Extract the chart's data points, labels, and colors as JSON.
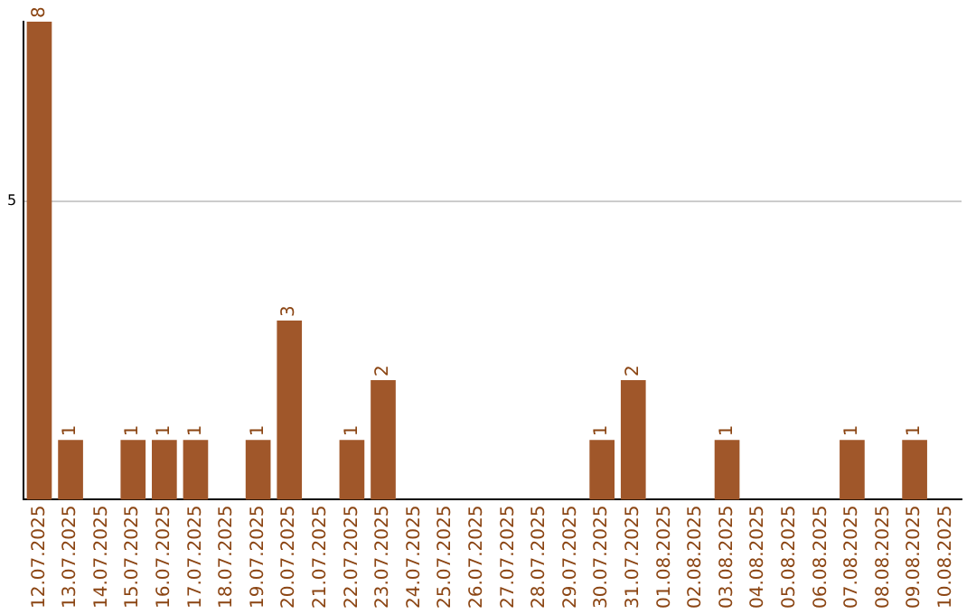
{
  "chart_data": {
    "type": "bar",
    "categories": [
      "12.07.2025",
      "13.07.2025",
      "14.07.2025",
      "15.07.2025",
      "16.07.2025",
      "17.07.2025",
      "18.07.2025",
      "19.07.2025",
      "20.07.2025",
      "21.07.2025",
      "22.07.2025",
      "23.07.2025",
      "24.07.2025",
      "25.07.2025",
      "26.07.2025",
      "27.07.2025",
      "28.07.2025",
      "29.07.2025",
      "30.07.2025",
      "31.07.2025",
      "01.08.2025",
      "02.08.2025",
      "03.08.2025",
      "04.08.2025",
      "05.08.2025",
      "06.08.2025",
      "07.08.2025",
      "08.08.2025",
      "09.08.2025",
      "10.08.2025"
    ],
    "values": [
      8,
      1,
      0,
      1,
      1,
      1,
      0,
      1,
      3,
      0,
      1,
      2,
      0,
      0,
      0,
      0,
      0,
      0,
      1,
      2,
      0,
      0,
      1,
      0,
      0,
      0,
      1,
      0,
      1,
      0
    ],
    "value_labels": [
      "8",
      "1",
      null,
      "1",
      "1",
      "1",
      null,
      "1",
      "3",
      null,
      "1",
      "2",
      null,
      null,
      null,
      null,
      null,
      null,
      "1",
      "2",
      null,
      null,
      "1",
      null,
      null,
      null,
      "1",
      null,
      "1",
      null
    ],
    "color": "#a0572a",
    "ylim": [
      0,
      8
    ],
    "yticks": [
      5
    ],
    "grid": "y",
    "legend": false
  }
}
